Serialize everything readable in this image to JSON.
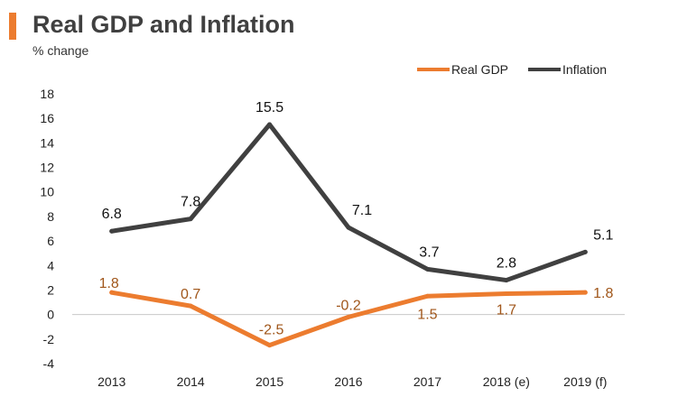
{
  "title": "Real GDP and Inflation",
  "subtitle": "% change",
  "legend": {
    "real_gdp": "Real GDP",
    "inflation": "Inflation"
  },
  "colors": {
    "accent": "#ec7c2f",
    "real_gdp": "#ec7c2f",
    "inflation": "#404040",
    "real_gdp_label": "#a0561a",
    "inflation_label": "#111111",
    "axis": "#c8c8c8"
  },
  "chart_data": {
    "type": "line",
    "title": "Real GDP and Inflation",
    "subtitle": "% change",
    "xlabel": "",
    "ylabel": "",
    "categories": [
      "2013",
      "2014",
      "2015",
      "2016",
      "2017",
      "2018 (e)",
      "2019 (f)"
    ],
    "series": [
      {
        "name": "Real GDP",
        "values": [
          1.8,
          0.7,
          -2.5,
          -0.2,
          1.5,
          1.7,
          1.8
        ]
      },
      {
        "name": "Inflation",
        "values": [
          6.8,
          7.8,
          15.5,
          7.1,
          3.7,
          2.8,
          5.1
        ]
      }
    ],
    "ylim": [
      -4,
      18
    ],
    "yticks": [
      18,
      16,
      14,
      12,
      10,
      8,
      6,
      4,
      2,
      0,
      -2,
      -4
    ],
    "grid": false,
    "legend_position": "top-right"
  }
}
